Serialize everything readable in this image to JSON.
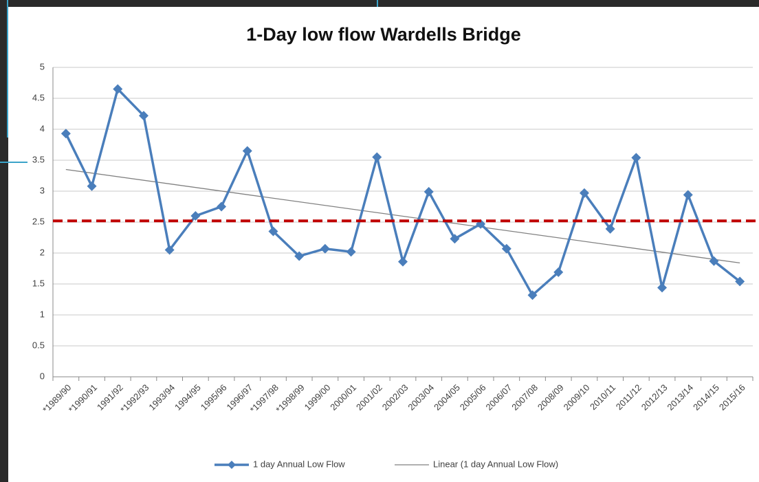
{
  "chart_data": {
    "type": "line",
    "title": "1-Day low flow Wardells Bridge",
    "categories": [
      "*1989/90",
      "*1990/91",
      "1991/92",
      "*1992/93",
      "1993/94",
      "1994/95",
      "1995/96",
      "1996/97",
      "*1997/98",
      "*1998/99",
      "1999/00",
      "2000/01",
      "2001/02",
      "2002/03",
      "2003/04",
      "2004/05",
      "2005/06",
      "2006/07",
      "2007/08",
      "2008/09",
      "2009/10",
      "2010/11",
      "2011/12",
      "2012/13",
      "2013/14",
      "2014/15",
      "2015/16"
    ],
    "series": [
      {
        "name": "1 day Annual Low Flow",
        "color": "#4a7ebb",
        "values": [
          3.93,
          3.08,
          4.65,
          4.22,
          2.05,
          2.6,
          2.75,
          3.65,
          2.35,
          1.95,
          2.07,
          2.02,
          3.55,
          1.86,
          2.99,
          2.23,
          2.47,
          2.07,
          1.32,
          1.69,
          2.97,
          2.39,
          3.54,
          1.44,
          2.94,
          1.87,
          1.54
        ]
      }
    ],
    "trendline": {
      "name": "Linear (1 day Annual Low Flow)",
      "color": "#808080",
      "start": 3.35,
      "end": 1.84
    },
    "reference_line": {
      "value": 2.52,
      "color": "#c00000"
    },
    "ylim": [
      0,
      5
    ],
    "yticks": [
      0,
      0.5,
      1,
      1.5,
      2,
      2.5,
      3,
      3.5,
      4,
      4.5,
      5
    ],
    "grid": true
  }
}
